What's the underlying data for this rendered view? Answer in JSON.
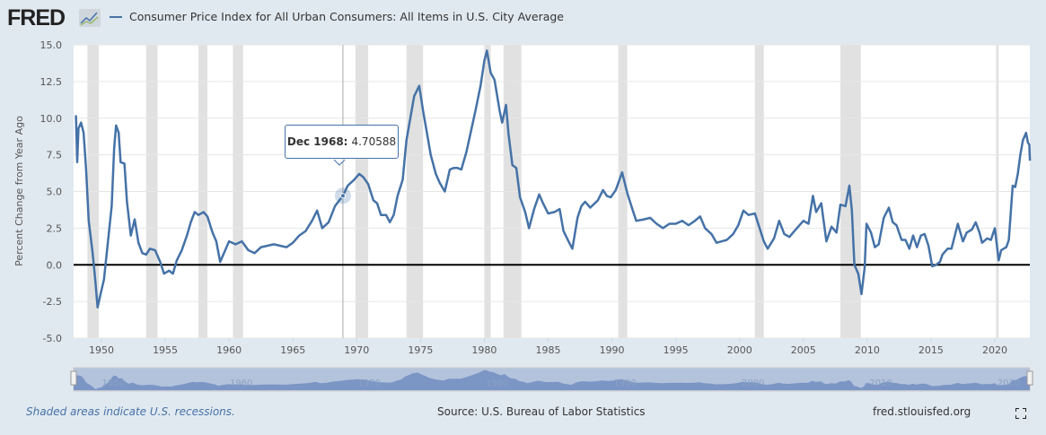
{
  "header": {
    "logo": "FRED",
    "logo_icon": "line-chart-icon",
    "legend_label": "Consumer Price Index for All Urban Consumers: All Items in U.S. City Average"
  },
  "tooltip": {
    "date": "Dec 1968:",
    "value": "4.70588"
  },
  "footer": {
    "note": "Shaded areas indicate U.S. recessions.",
    "source": "Source: U.S. Bureau of Labor Statistics",
    "site": "fred.stlouisfed.org",
    "fullscreen_icon": "fullscreen-icon"
  },
  "chart_data": {
    "type": "line",
    "ylabel": "Percent Change from Year Ago",
    "ylim": [
      -5,
      15
    ],
    "xlim": [
      1948,
      2022.75
    ],
    "yticks": [
      "15.0",
      "12.5",
      "10.0",
      "7.5",
      "5.0",
      "2.5",
      "0.0",
      "-2.5",
      "-5.0"
    ],
    "ytick_values": [
      15,
      12.5,
      10,
      7.5,
      5,
      2.5,
      0,
      -2.5,
      -5
    ],
    "xticks": [
      "1950",
      "1955",
      "1960",
      "1965",
      "1970",
      "1975",
      "1980",
      "1985",
      "1990",
      "1995",
      "2000",
      "2005",
      "2010",
      "2015",
      "2020"
    ],
    "navigator_labels": [
      "1950",
      "1960",
      "1970",
      "1980",
      "1990",
      "2000",
      "2010",
      "2020"
    ],
    "grid": true,
    "line_color": "#4572a7",
    "recession_color": "#e1e1e1",
    "recessions": [
      [
        1948.9,
        1949.8
      ],
      [
        1953.5,
        1954.4
      ],
      [
        1957.6,
        1958.3
      ],
      [
        1960.3,
        1961.1
      ],
      [
        1969.9,
        1970.9
      ],
      [
        1973.9,
        1975.2
      ],
      [
        1980.0,
        1980.5
      ],
      [
        1981.5,
        1982.9
      ],
      [
        1990.5,
        1991.2
      ],
      [
        2001.2,
        2001.9
      ],
      [
        2007.9,
        2009.5
      ],
      [
        2020.1,
        2020.3
      ]
    ],
    "highlight": {
      "x": 1968.92,
      "y": 4.70588
    },
    "series": [
      {
        "points": [
          [
            1948.0,
            10.2
          ],
          [
            1948.1,
            7.0
          ],
          [
            1948.2,
            9.3
          ],
          [
            1948.4,
            9.7
          ],
          [
            1948.6,
            9.0
          ],
          [
            1948.8,
            6.5
          ],
          [
            1949.0,
            3.0
          ],
          [
            1949.3,
            0.9
          ],
          [
            1949.5,
            -0.9
          ],
          [
            1949.7,
            -2.9
          ],
          [
            1949.9,
            -2.1
          ],
          [
            1950.2,
            -1.0
          ],
          [
            1950.5,
            1.5
          ],
          [
            1950.8,
            4.0
          ],
          [
            1951.0,
            8.0
          ],
          [
            1951.15,
            9.5
          ],
          [
            1951.35,
            9.0
          ],
          [
            1951.5,
            7.0
          ],
          [
            1951.8,
            6.9
          ],
          [
            1952.0,
            4.3
          ],
          [
            1952.3,
            2.0
          ],
          [
            1952.6,
            3.1
          ],
          [
            1952.9,
            1.5
          ],
          [
            1953.2,
            0.8
          ],
          [
            1953.5,
            0.7
          ],
          [
            1953.8,
            1.1
          ],
          [
            1954.2,
            1.0
          ],
          [
            1954.6,
            0.2
          ],
          [
            1954.9,
            -0.6
          ],
          [
            1955.3,
            -0.4
          ],
          [
            1955.6,
            -0.6
          ],
          [
            1955.9,
            0.3
          ],
          [
            1956.3,
            1.0
          ],
          [
            1956.7,
            2.0
          ],
          [
            1957.0,
            2.9
          ],
          [
            1957.3,
            3.6
          ],
          [
            1957.6,
            3.4
          ],
          [
            1958.0,
            3.6
          ],
          [
            1958.3,
            3.3
          ],
          [
            1958.7,
            2.2
          ],
          [
            1959.0,
            1.6
          ],
          [
            1959.3,
            0.2
          ],
          [
            1959.7,
            1.0
          ],
          [
            1960.0,
            1.6
          ],
          [
            1960.5,
            1.4
          ],
          [
            1961.0,
            1.6
          ],
          [
            1961.5,
            1.0
          ],
          [
            1962.0,
            0.8
          ],
          [
            1962.5,
            1.2
          ],
          [
            1963.0,
            1.3
          ],
          [
            1963.5,
            1.4
          ],
          [
            1964.0,
            1.3
          ],
          [
            1964.5,
            1.2
          ],
          [
            1965.0,
            1.5
          ],
          [
            1965.5,
            2.0
          ],
          [
            1966.0,
            2.3
          ],
          [
            1966.5,
            3.0
          ],
          [
            1966.9,
            3.7
          ],
          [
            1967.3,
            2.5
          ],
          [
            1967.8,
            2.9
          ],
          [
            1968.3,
            4.0
          ],
          [
            1968.92,
            4.70588
          ],
          [
            1969.3,
            5.4
          ],
          [
            1969.8,
            5.8
          ],
          [
            1970.2,
            6.2
          ],
          [
            1970.5,
            6.0
          ],
          [
            1970.9,
            5.5
          ],
          [
            1971.3,
            4.4
          ],
          [
            1971.6,
            4.2
          ],
          [
            1971.9,
            3.4
          ],
          [
            1972.3,
            3.4
          ],
          [
            1972.6,
            2.9
          ],
          [
            1972.9,
            3.4
          ],
          [
            1973.2,
            4.7
          ],
          [
            1973.6,
            5.8
          ],
          [
            1973.9,
            8.5
          ],
          [
            1974.2,
            10.0
          ],
          [
            1974.5,
            11.5
          ],
          [
            1974.9,
            12.2
          ],
          [
            1975.2,
            10.5
          ],
          [
            1975.5,
            9.0
          ],
          [
            1975.8,
            7.5
          ],
          [
            1976.2,
            6.2
          ],
          [
            1976.5,
            5.6
          ],
          [
            1976.9,
            5.0
          ],
          [
            1977.3,
            6.5
          ],
          [
            1977.6,
            6.6
          ],
          [
            1977.9,
            6.6
          ],
          [
            1978.2,
            6.5
          ],
          [
            1978.6,
            7.7
          ],
          [
            1978.9,
            8.9
          ],
          [
            1979.3,
            10.5
          ],
          [
            1979.7,
            12.2
          ],
          [
            1980.0,
            13.9
          ],
          [
            1980.2,
            14.6
          ],
          [
            1980.5,
            13.1
          ],
          [
            1980.8,
            12.6
          ],
          [
            1981.2,
            10.5
          ],
          [
            1981.4,
            9.7
          ],
          [
            1981.7,
            10.9
          ],
          [
            1981.9,
            8.9
          ],
          [
            1982.2,
            6.8
          ],
          [
            1982.5,
            6.6
          ],
          [
            1982.8,
            4.6
          ],
          [
            1983.2,
            3.6
          ],
          [
            1983.5,
            2.5
          ],
          [
            1983.9,
            3.8
          ],
          [
            1984.3,
            4.8
          ],
          [
            1984.6,
            4.2
          ],
          [
            1985.0,
            3.5
          ],
          [
            1985.5,
            3.6
          ],
          [
            1985.9,
            3.8
          ],
          [
            1986.2,
            2.3
          ],
          [
            1986.6,
            1.6
          ],
          [
            1986.9,
            1.1
          ],
          [
            1987.3,
            3.2
          ],
          [
            1987.6,
            4.0
          ],
          [
            1987.9,
            4.3
          ],
          [
            1988.3,
            3.9
          ],
          [
            1988.9,
            4.4
          ],
          [
            1989.3,
            5.1
          ],
          [
            1989.6,
            4.7
          ],
          [
            1989.9,
            4.6
          ],
          [
            1990.3,
            5.1
          ],
          [
            1990.8,
            6.3
          ],
          [
            1991.2,
            4.9
          ],
          [
            1991.6,
            3.8
          ],
          [
            1991.9,
            3.0
          ],
          [
            1992.5,
            3.1
          ],
          [
            1993.0,
            3.2
          ],
          [
            1993.5,
            2.8
          ],
          [
            1994.0,
            2.5
          ],
          [
            1994.5,
            2.8
          ],
          [
            1995.0,
            2.8
          ],
          [
            1995.5,
            3.0
          ],
          [
            1996.0,
            2.7
          ],
          [
            1996.5,
            3.0
          ],
          [
            1996.9,
            3.3
          ],
          [
            1997.3,
            2.5
          ],
          [
            1997.8,
            2.1
          ],
          [
            1998.2,
            1.5
          ],
          [
            1998.6,
            1.6
          ],
          [
            1999.0,
            1.7
          ],
          [
            1999.5,
            2.1
          ],
          [
            1999.9,
            2.7
          ],
          [
            2000.3,
            3.7
          ],
          [
            2000.7,
            3.4
          ],
          [
            2001.2,
            3.5
          ],
          [
            2001.5,
            2.7
          ],
          [
            2001.9,
            1.6
          ],
          [
            2002.2,
            1.1
          ],
          [
            2002.7,
            1.8
          ],
          [
            2003.1,
            3.0
          ],
          [
            2003.5,
            2.1
          ],
          [
            2003.9,
            1.9
          ],
          [
            2004.3,
            2.3
          ],
          [
            2004.7,
            2.7
          ],
          [
            2005.0,
            3.0
          ],
          [
            2005.4,
            2.8
          ],
          [
            2005.75,
            4.7
          ],
          [
            2006.0,
            3.6
          ],
          [
            2006.4,
            4.2
          ],
          [
            2006.8,
            1.6
          ],
          [
            2007.2,
            2.6
          ],
          [
            2007.6,
            2.2
          ],
          [
            2007.9,
            4.1
          ],
          [
            2008.3,
            4.0
          ],
          [
            2008.6,
            5.4
          ],
          [
            2008.8,
            3.7
          ],
          [
            2009.0,
            0.0
          ],
          [
            2009.3,
            -0.6
          ],
          [
            2009.55,
            -2.0
          ],
          [
            2009.8,
            -0.2
          ],
          [
            2009.95,
            2.8
          ],
          [
            2010.3,
            2.2
          ],
          [
            2010.6,
            1.2
          ],
          [
            2010.9,
            1.4
          ],
          [
            2011.3,
            3.2
          ],
          [
            2011.7,
            3.9
          ],
          [
            2012.0,
            2.9
          ],
          [
            2012.3,
            2.7
          ],
          [
            2012.7,
            1.7
          ],
          [
            2013.0,
            1.7
          ],
          [
            2013.3,
            1.1
          ],
          [
            2013.6,
            2.0
          ],
          [
            2013.9,
            1.2
          ],
          [
            2014.2,
            2.0
          ],
          [
            2014.5,
            2.1
          ],
          [
            2014.8,
            1.3
          ],
          [
            2015.1,
            -0.1
          ],
          [
            2015.4,
            0.0
          ],
          [
            2015.7,
            0.2
          ],
          [
            2015.9,
            0.7
          ],
          [
            2016.3,
            1.1
          ],
          [
            2016.6,
            1.1
          ],
          [
            2016.9,
            2.1
          ],
          [
            2017.1,
            2.8
          ],
          [
            2017.5,
            1.6
          ],
          [
            2017.8,
            2.2
          ],
          [
            2018.2,
            2.4
          ],
          [
            2018.5,
            2.9
          ],
          [
            2018.8,
            2.2
          ],
          [
            2019.0,
            1.5
          ],
          [
            2019.4,
            1.8
          ],
          [
            2019.7,
            1.7
          ],
          [
            2020.0,
            2.5
          ],
          [
            2020.3,
            0.3
          ],
          [
            2020.5,
            1.0
          ],
          [
            2020.9,
            1.2
          ],
          [
            2021.1,
            1.7
          ],
          [
            2021.3,
            4.2
          ],
          [
            2021.4,
            5.4
          ],
          [
            2021.6,
            5.3
          ],
          [
            2021.8,
            6.2
          ],
          [
            2022.0,
            7.5
          ],
          [
            2022.2,
            8.5
          ],
          [
            2022.45,
            9.0
          ],
          [
            2022.6,
            8.3
          ],
          [
            2022.7,
            8.2
          ],
          [
            2022.75,
            7.1
          ]
        ]
      }
    ]
  }
}
